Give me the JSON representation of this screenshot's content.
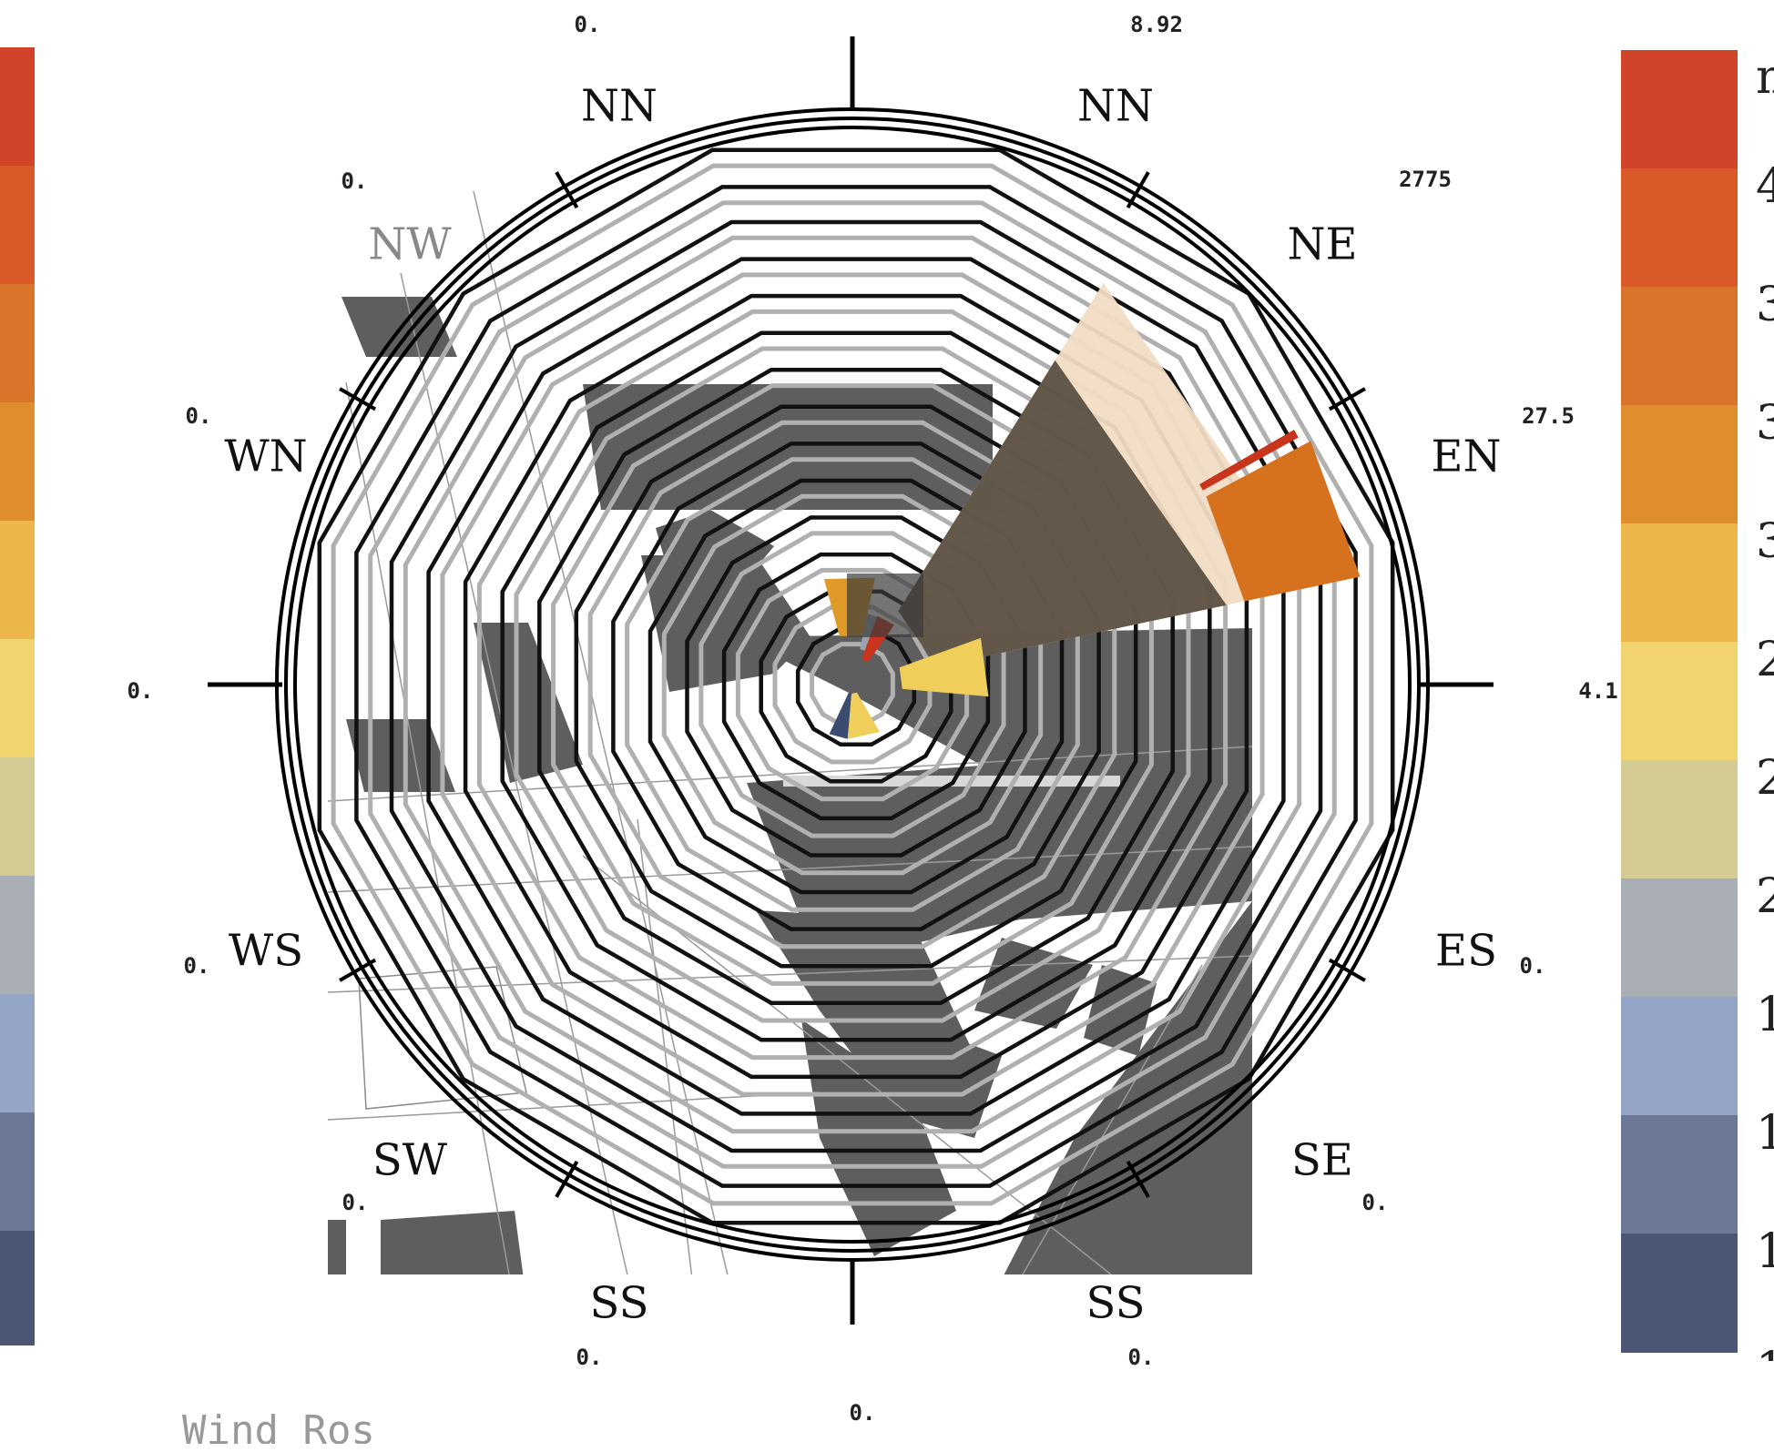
{
  "chart_data": {
    "type": "wind-rose",
    "title": "Wind Ros",
    "directions": [
      "NN",
      "NE",
      "EN",
      "ES",
      "SE",
      "SS",
      "SS",
      "SW",
      "WS",
      "WN",
      "NW",
      "NN"
    ],
    "ring_values": [
      "0.",
      "8.92",
      "2775",
      "27.5",
      "4.1",
      "0.",
      "0.",
      "0.",
      "0.",
      "0.",
      "0.",
      "0.",
      "0.",
      "0."
    ],
    "legend_right_labels": [
      "m",
      "4",
      "3",
      "3",
      "3",
      "2",
      "2",
      "2",
      "1",
      "1",
      "1",
      "1"
    ],
    "legend_colors": [
      "#d1442a",
      "#d95a28",
      "#d9742a",
      "#de8e2e",
      "#ecb64a",
      "#f1d46f",
      "#d5cb94",
      "#a9afb5",
      "#95a5c6",
      "#6b7896",
      "#4a5673"
    ]
  },
  "colors": {
    "building": "#5e5e5e",
    "shadow": "#4e4638",
    "peach": "#f2dcc4",
    "orange": "#d6711e",
    "gold": "#e09a2a",
    "red": "#c8341c",
    "yellow": "#f0ce5a",
    "navy": "#3c4c70"
  }
}
